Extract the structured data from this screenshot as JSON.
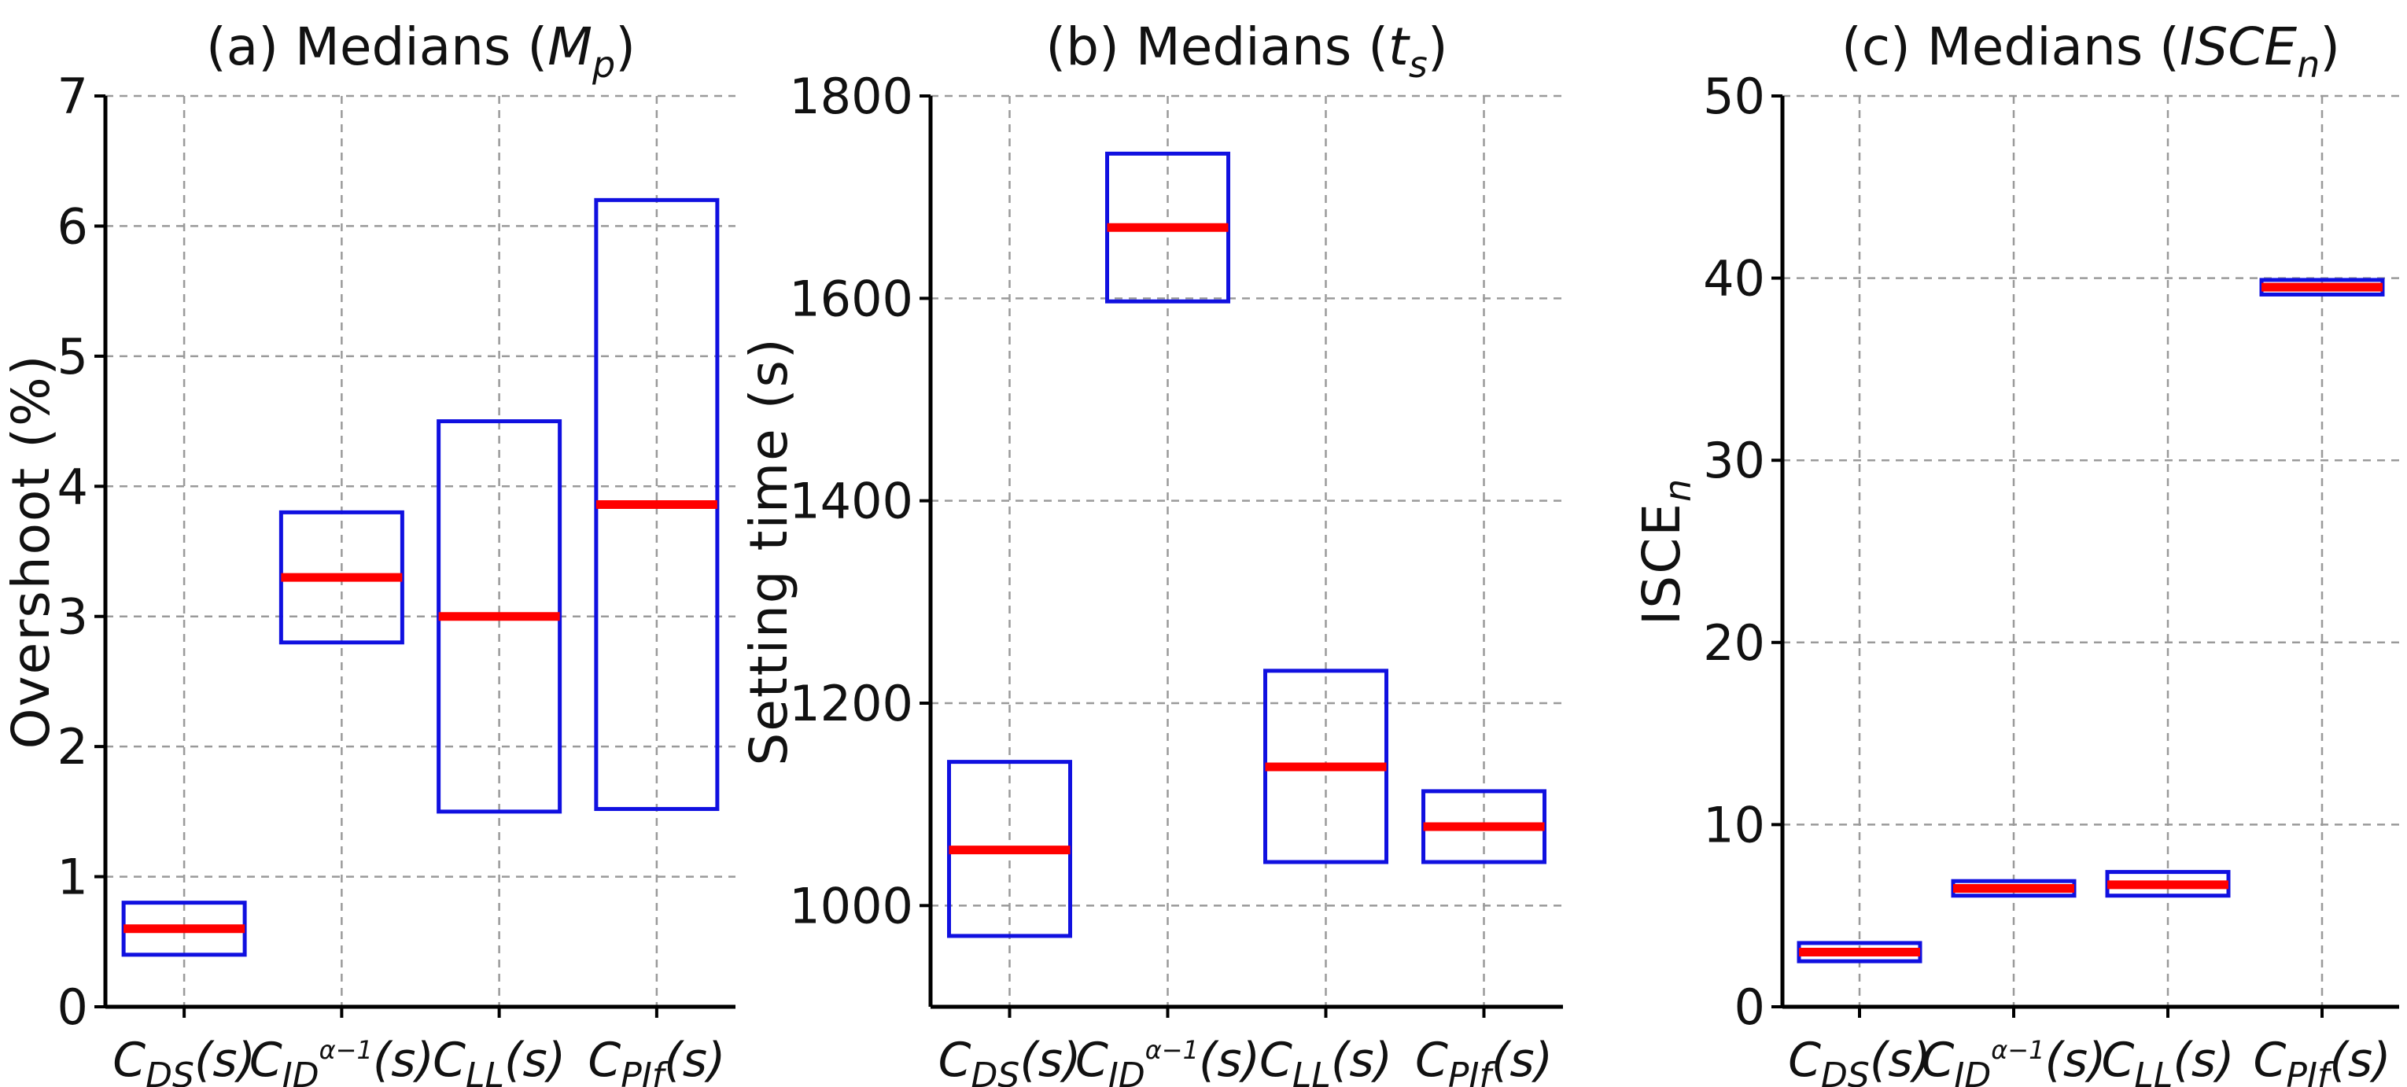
{
  "colors": {
    "box": "#1010e0",
    "median": "#ff0000"
  },
  "chart_data": [
    {
      "type": "box",
      "title": "(a) Medians (M_p)",
      "title_parts": {
        "prefix": "(a) Medians (",
        "var": "M",
        "sub": "p",
        "suffix": ")"
      },
      "xlabel": "",
      "ylabel": "Overshoot (%)",
      "ylim": [
        0,
        7
      ],
      "yticks": [
        0,
        1,
        2,
        3,
        4,
        5,
        6,
        7
      ],
      "grid": true,
      "categories": [
        "C_DS(s)",
        "C_ID^(α-1)(s)",
        "C_LL(s)",
        "C_PIf(s)"
      ],
      "boxes": [
        {
          "lower": 0.4,
          "median": 0.6,
          "upper": 0.8
        },
        {
          "lower": 2.8,
          "median": 3.3,
          "upper": 3.8
        },
        {
          "lower": 1.5,
          "median": 3.0,
          "upper": 4.5
        },
        {
          "lower": 1.52,
          "median": 3.86,
          "upper": 6.2
        }
      ]
    },
    {
      "type": "box",
      "title": "(b) Medians (t_s)",
      "title_parts": {
        "prefix": "(b) Medians (",
        "var": "t",
        "sub": "s",
        "suffix": ")"
      },
      "xlabel": "",
      "ylabel": "Setting time (s)",
      "ylim": [
        900,
        1800
      ],
      "yticks": [
        1000,
        1200,
        1400,
        1600,
        1800
      ],
      "grid": true,
      "categories": [
        "C_DS(s)",
        "C_ID^(α-1)(s)",
        "C_LL(s)",
        "C_PIf(s)"
      ],
      "boxes": [
        {
          "lower": 970,
          "median": 1055,
          "upper": 1142
        },
        {
          "lower": 1597,
          "median": 1670,
          "upper": 1743
        },
        {
          "lower": 1043,
          "median": 1137,
          "upper": 1232
        },
        {
          "lower": 1043,
          "median": 1078,
          "upper": 1113
        }
      ]
    },
    {
      "type": "box",
      "title": "(c) Medians (ISCE_n)",
      "title_parts": {
        "prefix": "(c) Medians (",
        "var": "ISCE",
        "sub": "n",
        "suffix": ")"
      },
      "xlabel": "",
      "ylabel": "ISCE_n",
      "ylabel_parts": {
        "main": "ISCE",
        "sub": "n"
      },
      "ylim": [
        0,
        50
      ],
      "yticks": [
        0,
        10,
        20,
        30,
        40,
        50
      ],
      "grid": true,
      "categories": [
        "C_DS(s)",
        "C_ID^(α-1)(s)",
        "C_LL(s)",
        "C_PIf(s)"
      ],
      "boxes": [
        {
          "lower": 2.5,
          "median": 3.0,
          "upper": 3.5
        },
        {
          "lower": 6.1,
          "median": 6.5,
          "upper": 6.9
        },
        {
          "lower": 6.1,
          "median": 6.7,
          "upper": 7.4
        },
        {
          "lower": 39.1,
          "median": 39.5,
          "upper": 39.9
        }
      ]
    }
  ]
}
